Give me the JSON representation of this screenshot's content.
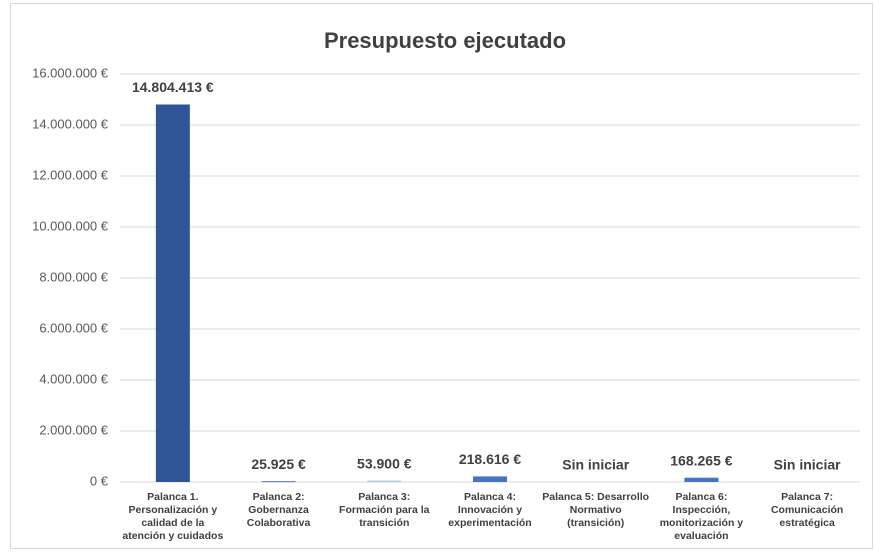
{
  "chart_data": {
    "type": "bar",
    "title": "Presupuesto ejecutado",
    "categories": [
      "Palanca 1. Personalización y calidad de la atención y cuidados",
      "Palanca 2: Gobernanza Colaborativa",
      "Palanca 3: Formación para la transición",
      "Palanca 4: Innovación y experimentación",
      "Palanca 5: Desarrollo Normativo (transición)",
      "Palanca 6: Inspección, monitorización y evaluación",
      "Palanca 7: Comunicación estratégica"
    ],
    "values": [
      14804413,
      25925,
      53900,
      218616,
      null,
      168265,
      null
    ],
    "value_labels": [
      "14.804.413 €",
      "25.925 €",
      "53.900 €",
      "218.616 €",
      "Sin iniciar",
      "168.265 €",
      "Sin iniciar"
    ],
    "colors": [
      "#2f5597",
      "#2f5597",
      "#b4c7e7",
      "#4472c4",
      "#4472c4",
      "#4472c4",
      "#4472c4"
    ],
    "ylim": [
      0,
      16000000
    ],
    "yticks": [
      {
        "value": 0,
        "label": "0 €"
      },
      {
        "value": 2000000,
        "label": "2.000.000 €"
      },
      {
        "value": 4000000,
        "label": "4.000.000 €"
      },
      {
        "value": 6000000,
        "label": "6.000.000 €"
      },
      {
        "value": 8000000,
        "label": "8.000.000 €"
      },
      {
        "value": 10000000,
        "label": "10.000.000 €"
      },
      {
        "value": 12000000,
        "label": "12.000.000 €"
      },
      {
        "value": 14000000,
        "label": "14.000.000 €"
      },
      {
        "value": 16000000,
        "label": "16.000.000 €"
      }
    ],
    "grid": true
  }
}
